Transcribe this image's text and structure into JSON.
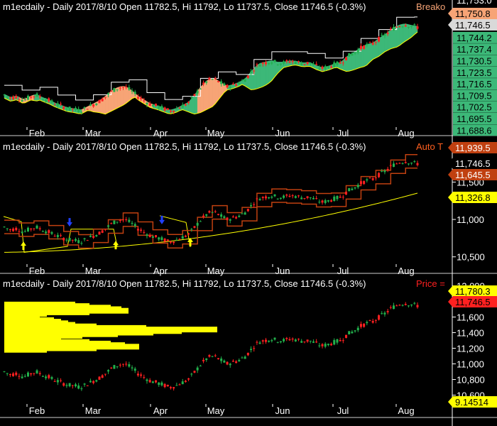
{
  "colors": {
    "background": "#000000",
    "axis": "#ffffff",
    "separator": "#cfcfcf",
    "title": "#ffffff",
    "bull": "#22b14c",
    "bear": "#ff2020",
    "ribbon_green": "#3cb878",
    "ribbon_orange": "#f7a476",
    "envelope": "#ffffff",
    "trend_line": "#ffff00",
    "channel": "#c04010",
    "volume_profile": "#ffff00",
    "arrow_up": "#ffff00",
    "arrow_blue": "#2040ff"
  },
  "chart_data": [
    {
      "type": "candlestick",
      "title": "m1ecdaily - Daily 2017/8/10 Open 11782.5, Hi 11792, Lo 11737.5, Close 11746.5 (-0.3%)",
      "indicator": "Breako",
      "x_labels": [
        "Feb",
        "Mar",
        "Apr",
        "May",
        "Jun",
        "Jul",
        "Aug"
      ],
      "y_ticks": [
        "11,753.0",
        "11,750.8",
        "11,746.5",
        "11,744.2",
        "11,737.4",
        "11,730.5",
        "11,723.5",
        "11,716.5",
        "11,709.5",
        "11,702.5",
        "11,695.5",
        "11,688.6"
      ],
      "price_tags": [
        {
          "label": "11,750.8",
          "bg": "#f7a476",
          "fg": "#000000"
        },
        {
          "label": "11,746.5",
          "bg": "#d9d9d9",
          "fg": "#000000"
        }
      ],
      "last_close": 11746.5
    },
    {
      "type": "candlestick",
      "title": "m1ecdaily - Daily 2017/8/10 Open 11782.5, Hi 11792, Lo 11737.5, Close 11746.5 (-0.3%)",
      "indicator": "Auto T",
      "scale": "log",
      "x_labels": [
        "Feb",
        "Mar",
        "Apr",
        "May",
        "Jun",
        "Jul",
        "Aug"
      ],
      "y_ticks": [
        "11,500",
        "11,000",
        "10,500"
      ],
      "price_tags": [
        {
          "label": "11,939.5",
          "bg": "#c04010",
          "fg": "#ffffff"
        },
        {
          "label": "11,746.5",
          "bg": "#000000",
          "fg": "#ffffff"
        },
        {
          "label": "11,645.5",
          "bg": "#c04010",
          "fg": "#ffffff"
        },
        {
          "label": "11,326.8",
          "bg": "#ffff00",
          "fg": "#000000"
        }
      ]
    },
    {
      "type": "candlestick",
      "title": "m1ecdaily - Daily 2017/8/10 Open 11782.5, Hi 11792, Lo 11737.5, Close 11746.5 (-0.3%)",
      "indicator": "Price =",
      "x_labels": [
        "Feb",
        "Mar",
        "Apr",
        "May",
        "Jun",
        "Jul",
        "Aug"
      ],
      "y_ticks": [
        "12,000",
        "11,800",
        "11,600",
        "11,400",
        "11,200",
        "11,000",
        "10,800",
        "10,600"
      ],
      "ylim": [
        10550,
        12050
      ],
      "price_tags": [
        {
          "label": "11,780.3",
          "bg": "#ffff00",
          "fg": "#000000"
        },
        {
          "label": "11,746.5",
          "bg": "#ff2020",
          "fg": "#000000"
        },
        {
          "label": "9.14514",
          "bg": "#ffff00",
          "fg": "#000000"
        }
      ],
      "series": [
        {
          "name": "Close",
          "values": [
            10900,
            10860,
            10880,
            10830,
            10870,
            10900,
            10860,
            10830,
            10790,
            10760,
            10730,
            10720,
            10700,
            10740,
            10780,
            10820,
            10880,
            10950,
            10990,
            11000,
            10950,
            10880,
            10830,
            10780,
            10760,
            10730,
            10700,
            10720,
            10760,
            10800,
            10900,
            11000,
            11080,
            11100,
            11050,
            11000,
            11020,
            11050,
            11100,
            11200,
            11280,
            11300,
            11320,
            11300,
            11300,
            11320,
            11310,
            11290,
            11300,
            11260,
            11230,
            11250,
            11280,
            11300,
            11380,
            11420,
            11480,
            11520,
            11540,
            11600,
            11650,
            11720,
            11760,
            11780,
            11760,
            11746.5
          ]
        }
      ]
    }
  ]
}
